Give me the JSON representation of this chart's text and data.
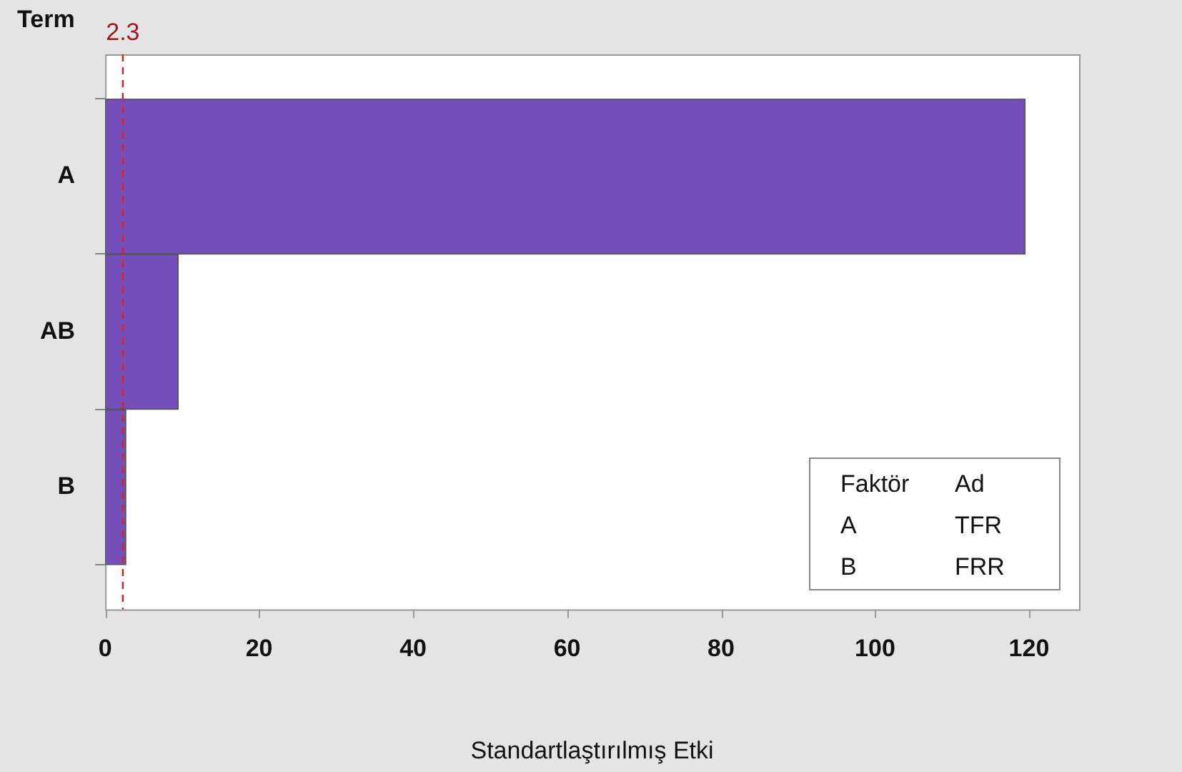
{
  "chart_data": {
    "type": "bar",
    "orientation": "horizontal",
    "categories": [
      "A",
      "AB",
      "B"
    ],
    "values": [
      119.5,
      9.5,
      2.7
    ],
    "color": "#744fba",
    "xlim": [
      0,
      126.5
    ],
    "xticks": [
      0,
      20,
      40,
      60,
      80,
      100,
      120
    ],
    "xlabel": "Standartlaştırılmış Etki",
    "ylabel": "Term",
    "ref_lines": [
      {
        "axis": "x",
        "value": 2.3,
        "label": "2.3",
        "color": "#e02020",
        "line_style": "dashed"
      }
    ],
    "annotations": [
      "Faktör",
      "Ad",
      "A",
      "TFR",
      "B",
      "FRR"
    ],
    "grid": false,
    "legend": false
  }
}
